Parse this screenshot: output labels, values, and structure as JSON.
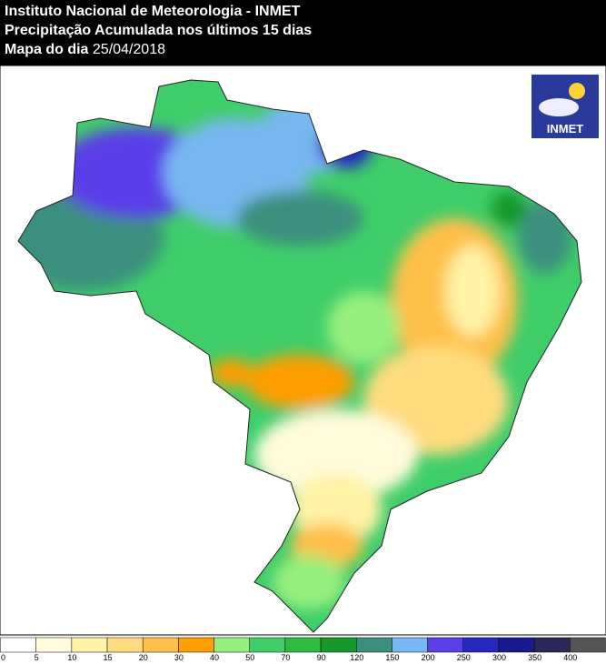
{
  "header": {
    "institute": "Instituto Nacional de Meteorologia - INMET",
    "product": "Precipitação Acumulada nos últimos 15 dias",
    "date_label": "Mapa do dia",
    "date": "25/04/2018"
  },
  "logo": {
    "text": "INMET"
  },
  "legend": {
    "ticks": [
      0,
      5,
      10,
      15,
      20,
      30,
      40,
      50,
      70,
      90,
      120,
      150,
      200,
      250,
      300,
      350,
      400
    ],
    "colors": [
      "#ffffff",
      "#fffbdc",
      "#fff3a6",
      "#ffdc7e",
      "#ffc04a",
      "#ff9f00",
      "#96f07e",
      "#3fcd6a",
      "#2fba40",
      "#16982c",
      "#3a8f7e",
      "#78b8f2",
      "#5a3ee8",
      "#2626c0",
      "#1a1a90",
      "#2c2858",
      "#555555"
    ]
  }
}
